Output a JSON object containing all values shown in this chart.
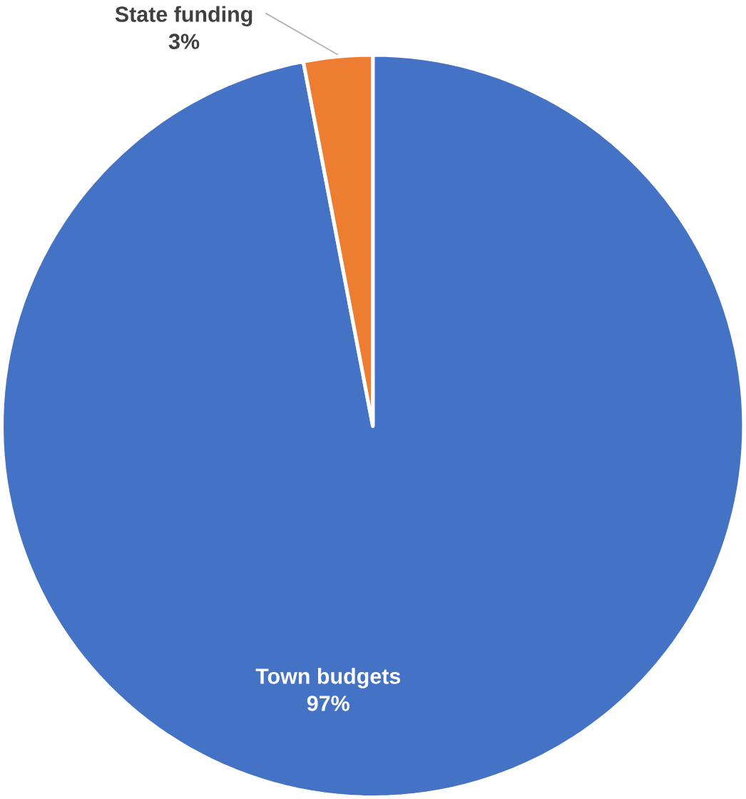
{
  "chart_data": {
    "type": "pie",
    "categories": [
      "Town budgets",
      "State funding"
    ],
    "values": [
      97,
      3
    ],
    "colors": [
      "#4472c4",
      "#ed7d31"
    ],
    "value_labels": [
      "97%",
      "3%"
    ]
  }
}
